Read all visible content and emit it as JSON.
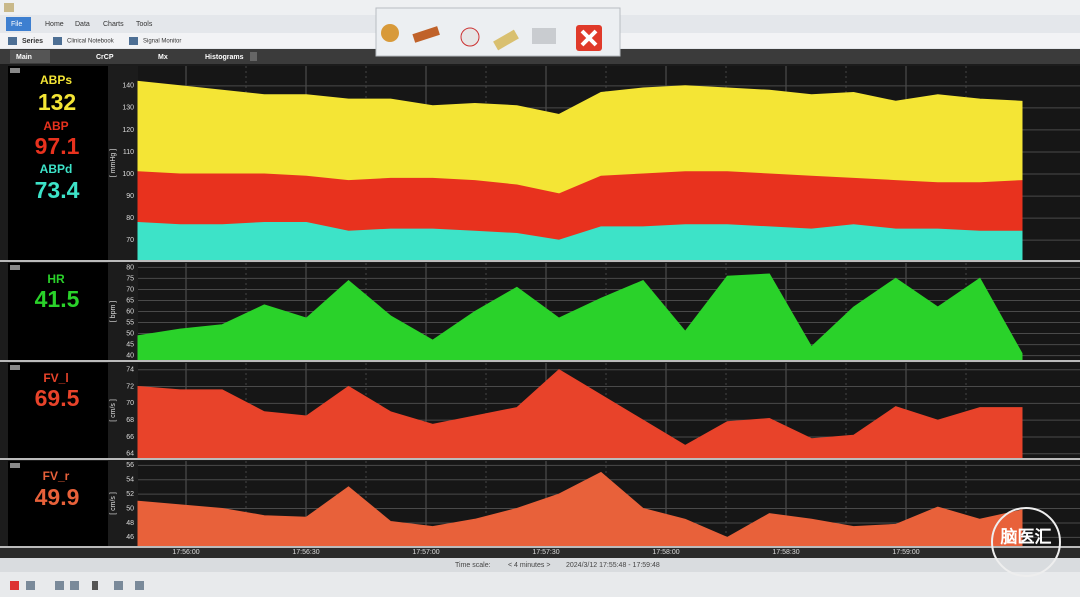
{
  "menu": [
    "File",
    "Home",
    "Data",
    "Charts",
    "Tools"
  ],
  "toolbar": [
    "Series",
    "Clinical Notebook",
    "Signal Monitor"
  ],
  "tabs": [
    "Main",
    "CrCP",
    "Mx",
    "Histograms"
  ],
  "panels": [
    {
      "readouts": [
        {
          "name": "ABPs",
          "value": 132,
          "color": "#f4e535"
        },
        {
          "name": "ABP",
          "value": 97.1,
          "color": "#e8321e"
        },
        {
          "name": "ABPd",
          "value": 73.4,
          "color": "#3de3c8"
        }
      ],
      "chart": {
        "type": "area",
        "ylabel": "[ mmHg ]",
        "ylim": [
          61,
          149
        ],
        "yticks": [
          70,
          80,
          90,
          100,
          110,
          120,
          130,
          140
        ],
        "series": [
          {
            "color": "#f4e535",
            "values": [
              142,
              140,
              138,
              136,
              136,
              134,
              134,
              131,
              132,
              131,
              127,
              137,
              139,
              140,
              139,
              138,
              136,
              137,
              133,
              136,
              134,
              133
            ]
          },
          {
            "color": "#e8321e",
            "values": [
              101,
              100,
              100,
              100,
              99,
              97,
              98,
              98,
              97,
              95,
              91,
              99,
              100,
              101,
              101,
              100,
              99,
              98,
              97,
              96,
              96,
              97
            ]
          },
          {
            "color": "#3de3c8",
            "values": [
              78,
              77,
              77,
              78,
              78,
              74,
              75,
              75,
              74,
              73,
              70,
              76,
              76,
              77,
              77,
              76,
              75,
              77,
              75,
              75,
              74,
              74
            ]
          }
        ]
      }
    },
    {
      "readouts": [
        {
          "name": "HR",
          "value": 41.5,
          "color": "#2ad22a"
        }
      ],
      "chart": {
        "type": "area",
        "ylabel": "[ bpm ]",
        "ylim": [
          38,
          82
        ],
        "yticks": [
          40,
          45,
          50,
          55,
          60,
          65,
          70,
          75,
          80
        ],
        "series": [
          {
            "color": "#2ad22a",
            "values": [
              49,
              52,
              54,
              63,
              57,
              74,
              58,
              47,
              60,
              71,
              57,
              66,
              74,
              51,
              76,
              77,
              44,
              62,
              75,
              62,
              75,
              41
            ]
          }
        ]
      }
    },
    {
      "readouts": [
        {
          "name": "FV_l",
          "value": 69.5,
          "color": "#e8432a"
        }
      ],
      "chart": {
        "type": "area",
        "ylabel": "[ cm/s ]",
        "ylim": [
          63.5,
          74.8
        ],
        "yticks": [
          64,
          66,
          68,
          70,
          72,
          74
        ],
        "series": [
          {
            "color": "#e8432a",
            "values": [
              72,
              71.6,
              71.6,
              69,
              68.5,
              72,
              69,
              67.5,
              68.5,
              69.5,
              74,
              71,
              68,
              65,
              67.8,
              68.2,
              65.8,
              66.2,
              69.6,
              68,
              69.5,
              69.5
            ]
          }
        ]
      }
    },
    {
      "readouts": [
        {
          "name": "FV_r",
          "value": 49.9,
          "color": "#e8613a"
        }
      ],
      "chart": {
        "type": "area",
        "ylabel": "[ cm/s ]",
        "ylim": [
          44.8,
          56.6
        ],
        "yticks": [
          46,
          48,
          50,
          52,
          54,
          56
        ],
        "series": [
          {
            "color": "#e8613a",
            "values": [
              51,
              50.5,
              50,
              49,
              48.8,
              53,
              48.2,
              47.5,
              48.5,
              50,
              52,
              55,
              50,
              48.5,
              46,
              49.3,
              48.5,
              47.5,
              47.8,
              50.2,
              48.5,
              49.8
            ]
          }
        ]
      }
    }
  ],
  "time_axis": {
    "xticks": [
      "17:56:00",
      "17:56:30",
      "17:57:00",
      "17:57:30",
      "17:58:00",
      "17:58:30",
      "17:59:00"
    ]
  },
  "footer": {
    "label": "Time scale:",
    "scale": "< 4 minutes >",
    "range": "2024/3/12 17:55:48 - 17:59:48"
  },
  "watermark": "脑医汇"
}
